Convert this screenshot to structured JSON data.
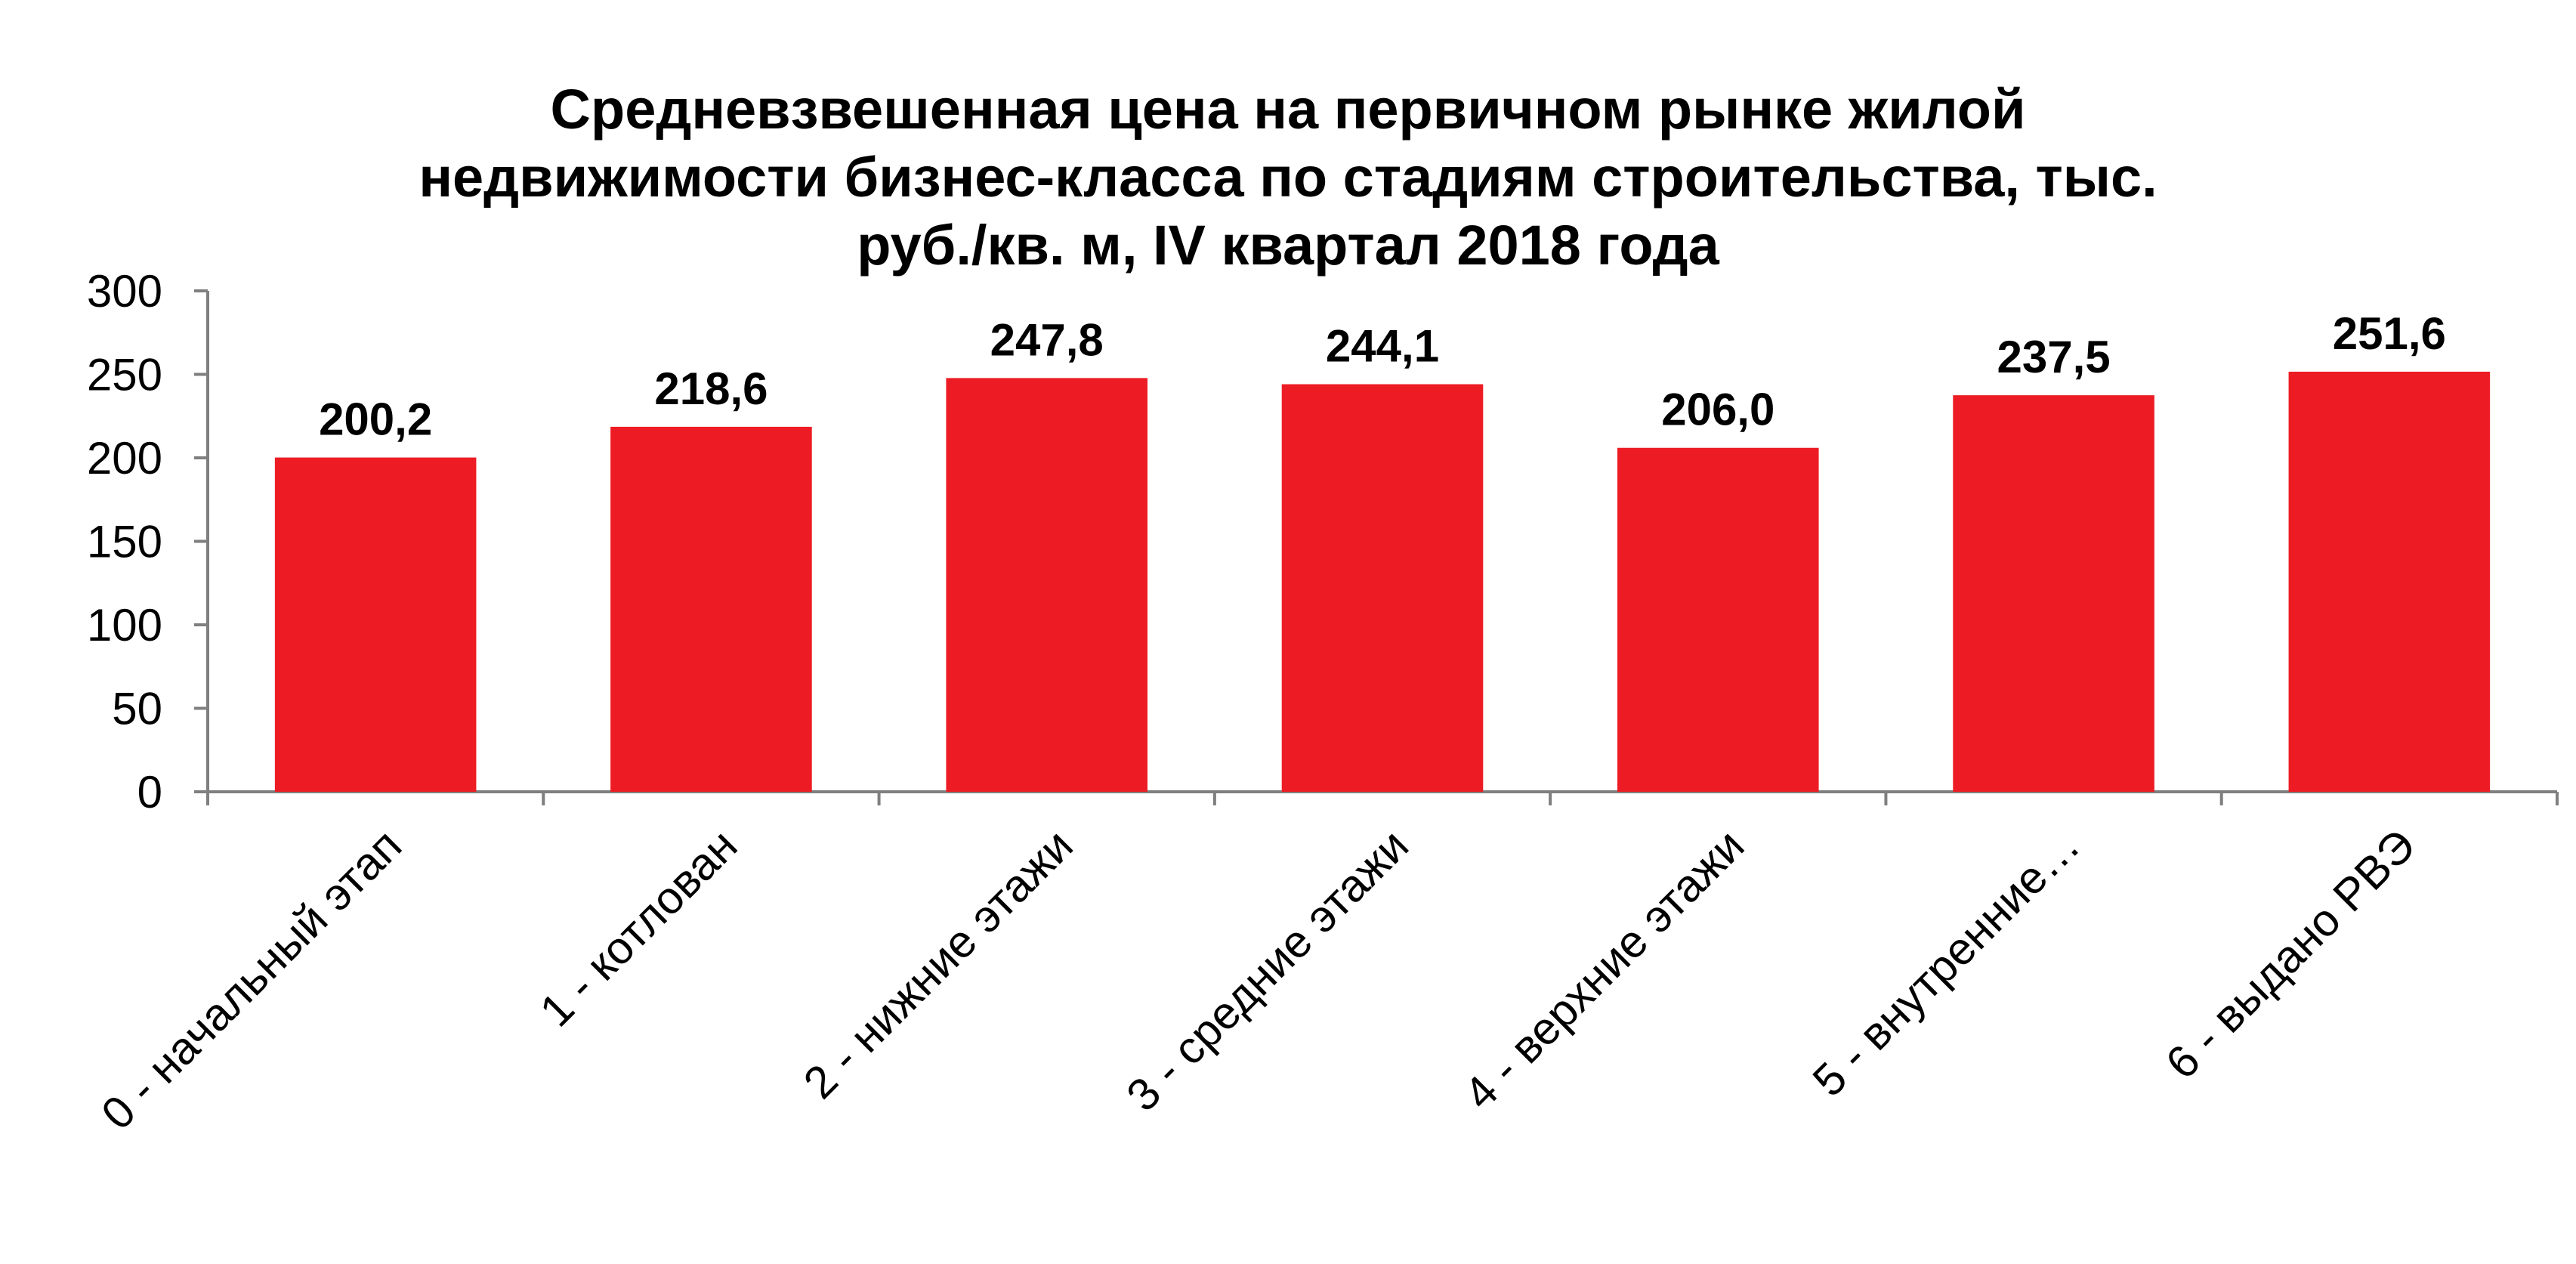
{
  "chart_data": {
    "type": "bar",
    "title_lines": [
      "Средневзвешенная цена на первичном рынке жилой",
      "недвижимости  бизнес-класса по стадиям строительства,  тыс.",
      "руб./кв. м,  IV квартал 2018 года"
    ],
    "categories": [
      "0 - начальный этап",
      "1 - котлован",
      "2 - нижние этажи",
      "3 - средние этажи",
      "4 - верхние этажи",
      "5 - внутренние…",
      "6 - выдано РВЭ"
    ],
    "values": [
      200.2,
      218.6,
      247.8,
      244.1,
      206.0,
      237.5,
      251.6
    ],
    "data_labels": [
      "200,2",
      "218,6",
      "247,8",
      "244,1",
      "206,0",
      "237,5",
      "251,6"
    ],
    "ylim": [
      0,
      300
    ],
    "yticks": [
      0,
      50,
      100,
      150,
      200,
      250,
      300
    ],
    "ytick_labels": [
      "0",
      "50",
      "100",
      "150",
      "200",
      "250",
      "300"
    ],
    "grid": false,
    "legend": "none",
    "bar_color": "#ed1c24",
    "axis_color": "#7f7f7f",
    "text_color": "#000000"
  }
}
